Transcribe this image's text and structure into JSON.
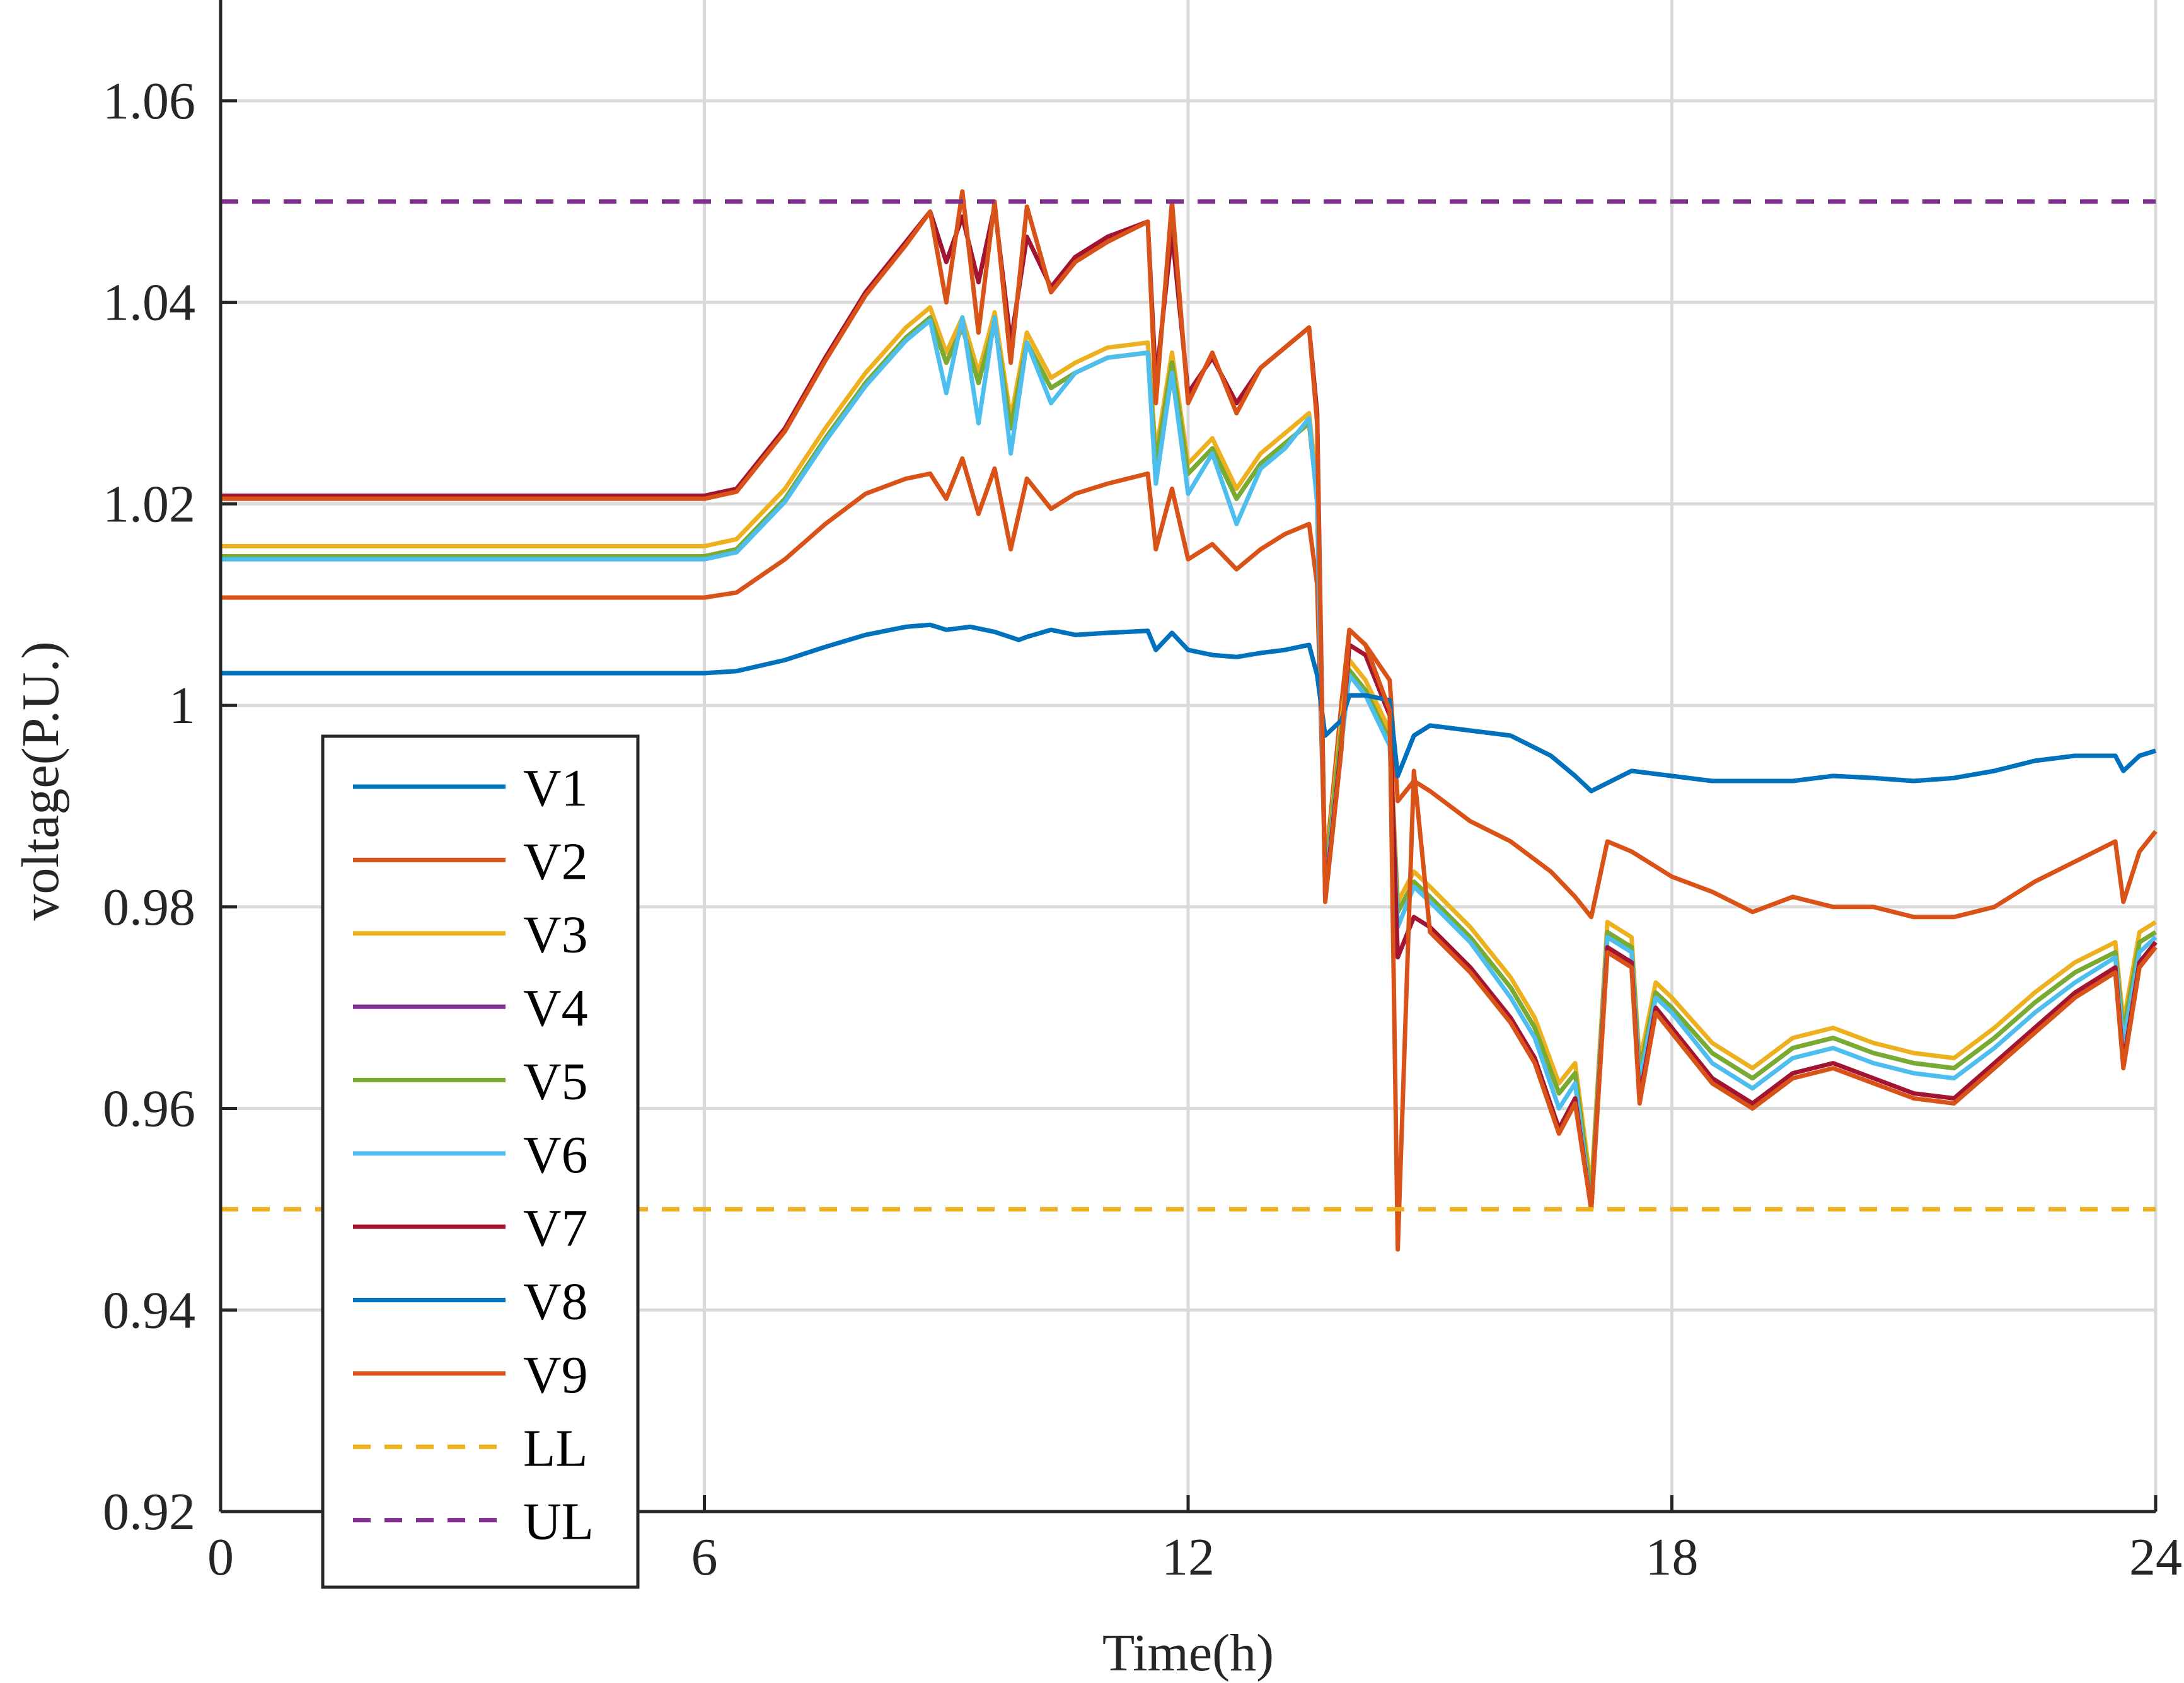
{
  "chart_data": {
    "type": "line",
    "title": "",
    "xlabel": "Time(h)",
    "ylabel": "voltage(P.U.)",
    "xlim": [
      0,
      24
    ],
    "ylim": [
      0.92,
      1.07
    ],
    "xticks": [
      0,
      6,
      12,
      18,
      24
    ],
    "xtick_labels": [
      "0",
      "6",
      "12",
      "18",
      "24"
    ],
    "yticks": [
      0.92,
      0.94,
      0.96,
      0.98,
      1.0,
      1.02,
      1.04,
      1.06
    ],
    "ytick_labels": [
      "0.92",
      "0.94",
      "0.96",
      "0.98",
      "1",
      "1.02",
      "1.04",
      "1.06"
    ],
    "grid": true,
    "legend_position": "bottom-left",
    "series": [
      {
        "name": "V1",
        "color": "#0072BD",
        "dash": "solid",
        "x": [
          0,
          6,
          6.4,
          7,
          7.5,
          8,
          8.5,
          8.8,
          9,
          9.3,
          9.6,
          9.9,
          10,
          10.3,
          10.6,
          11,
          11.5,
          11.6,
          11.8,
          12,
          12.3,
          12.6,
          12.9,
          13.2,
          13.5,
          13.6,
          13.7,
          13.9,
          14,
          14.2,
          14.5,
          14.6,
          14.8,
          15,
          15.5,
          16,
          16.5,
          16.8,
          17,
          17.5,
          18,
          18.5,
          19,
          19.5,
          20,
          20.5,
          21,
          21.5,
          22,
          22.5,
          23,
          23.5,
          23.6,
          23.8,
          24
        ],
        "y": [
          1.0032,
          1.0032,
          1.0034,
          1.0045,
          1.0058,
          1.007,
          1.0078,
          1.008,
          1.0075,
          1.0078,
          1.0073,
          1.0065,
          1.0068,
          1.0075,
          1.007,
          1.0072,
          1.0074,
          1.0055,
          1.0072,
          1.0055,
          1.005,
          1.0048,
          1.0052,
          1.0055,
          1.006,
          1.003,
          0.997,
          0.9985,
          1.001,
          1.001,
          1.0005,
          0.993,
          0.997,
          0.998,
          0.9975,
          0.997,
          0.995,
          0.993,
          0.9915,
          0.9935,
          0.993,
          0.9925,
          0.9925,
          0.9925,
          0.993,
          0.9928,
          0.9925,
          0.9928,
          0.9935,
          0.9945,
          0.995,
          0.995,
          0.9935,
          0.995,
          0.9955
        ]
      },
      {
        "name": "V2",
        "color": "#D95319",
        "dash": "solid",
        "x": [
          0,
          6,
          6.4,
          7,
          7.5,
          8,
          8.5,
          8.8,
          9,
          9.2,
          9.4,
          9.6,
          9.8,
          10,
          10.3,
          10.6,
          11,
          11.5,
          11.6,
          11.8,
          12,
          12.3,
          12.6,
          12.9,
          13.2,
          13.5,
          13.6,
          13.7,
          13.9,
          14,
          14.2,
          14.5,
          14.6,
          14.8,
          15,
          15.5,
          16,
          16.5,
          16.8,
          17,
          17.2,
          17.5,
          18,
          18.5,
          19,
          19.5,
          20,
          20.5,
          21,
          21.5,
          22,
          22.5,
          23,
          23.5,
          23.6,
          23.8,
          24
        ],
        "y": [
          1.0107,
          1.0107,
          1.0112,
          1.0145,
          1.018,
          1.021,
          1.0225,
          1.023,
          1.0205,
          1.0245,
          1.019,
          1.0235,
          1.0155,
          1.0225,
          1.0195,
          1.021,
          1.022,
          1.023,
          1.0155,
          1.0215,
          1.0145,
          1.016,
          1.0135,
          1.0155,
          1.017,
          1.018,
          1.012,
          0.9835,
          1.0,
          1.0075,
          1.006,
          1.0025,
          0.9905,
          0.9925,
          0.9915,
          0.9885,
          0.9865,
          0.9835,
          0.981,
          0.979,
          0.9865,
          0.9855,
          0.983,
          0.9815,
          0.9795,
          0.981,
          0.98,
          0.98,
          0.979,
          0.979,
          0.98,
          0.9825,
          0.9845,
          0.9865,
          0.9805,
          0.9855,
          0.9875
        ]
      },
      {
        "name": "V3",
        "color": "#EDB120",
        "dash": "solid",
        "x": [
          0,
          6,
          6.4,
          7,
          7.5,
          8,
          8.5,
          8.8,
          9,
          9.2,
          9.4,
          9.6,
          9.8,
          10,
          10.3,
          10.6,
          11,
          11.5,
          11.6,
          11.8,
          12,
          12.3,
          12.6,
          12.9,
          13.2,
          13.5,
          13.6,
          13.7,
          13.9,
          14,
          14.2,
          14.5,
          14.6,
          14.8,
          15,
          15.5,
          16,
          16.3,
          16.6,
          16.8,
          17,
          17.2,
          17.5,
          17.6,
          17.8,
          18,
          18.5,
          19,
          19.5,
          20,
          20.5,
          21,
          21.5,
          22,
          22.5,
          23,
          23.5,
          23.6,
          23.8,
          24
        ],
        "y": [
          1.0158,
          1.0158,
          1.0165,
          1.0215,
          1.0275,
          1.033,
          1.0375,
          1.0395,
          1.035,
          1.0385,
          1.033,
          1.039,
          1.0285,
          1.037,
          1.0325,
          1.034,
          1.0355,
          1.036,
          1.025,
          1.035,
          1.024,
          1.0265,
          1.0215,
          1.025,
          1.027,
          1.029,
          1.0215,
          0.983,
          0.9985,
          1.0045,
          1.0025,
          0.9975,
          0.9805,
          0.9835,
          0.982,
          0.978,
          0.973,
          0.969,
          0.9625,
          0.9645,
          0.952,
          0.9785,
          0.977,
          0.9645,
          0.9725,
          0.971,
          0.9665,
          0.964,
          0.967,
          0.968,
          0.9665,
          0.9655,
          0.965,
          0.968,
          0.9715,
          0.9745,
          0.9765,
          0.9685,
          0.9775,
          0.9785
        ]
      },
      {
        "name": "V4",
        "color": "#7E2F8E",
        "dash": "solid",
        "x": [
          0,
          6,
          6.4,
          7,
          7.5,
          8,
          8.5,
          8.8,
          9,
          9.2,
          9.4,
          9.6,
          9.8,
          10,
          10.3,
          10.6,
          11,
          11.5,
          11.6,
          11.8,
          12,
          12.3,
          12.6,
          12.9,
          13.2,
          13.5,
          13.6,
          13.7,
          13.9,
          14,
          14.2,
          14.5,
          14.6,
          14.8,
          15,
          15.5,
          16,
          16.3,
          16.6,
          16.8,
          17,
          17.2,
          17.5,
          17.6,
          17.8,
          18,
          18.5,
          19,
          19.5,
          20,
          20.5,
          21,
          21.5,
          22,
          22.5,
          23,
          23.5,
          23.6,
          23.8,
          24
        ],
        "y": [
          1.0148,
          1.0148,
          1.0155,
          1.0205,
          1.0265,
          1.032,
          1.0365,
          1.0385,
          1.034,
          1.0375,
          1.032,
          1.038,
          1.0275,
          1.036,
          1.0315,
          1.033,
          1.0345,
          1.035,
          1.024,
          1.034,
          1.023,
          1.0255,
          1.0205,
          1.024,
          1.026,
          1.028,
          1.0205,
          0.9825,
          0.9975,
          1.0035,
          1.0015,
          0.9965,
          0.9795,
          0.9825,
          0.981,
          0.977,
          0.972,
          0.968,
          0.9615,
          0.9635,
          0.951,
          0.9775,
          0.976,
          0.9635,
          0.9715,
          0.97,
          0.9655,
          0.963,
          0.966,
          0.967,
          0.9655,
          0.9645,
          0.964,
          0.967,
          0.9705,
          0.9735,
          0.9755,
          0.9675,
          0.9765,
          0.9775
        ]
      },
      {
        "name": "V5",
        "color": "#77AC30",
        "dash": "solid",
        "x": [
          0,
          6,
          6.4,
          7,
          7.5,
          8,
          8.5,
          8.8,
          9,
          9.2,
          9.4,
          9.6,
          9.8,
          10,
          10.3,
          10.6,
          11,
          11.5,
          11.6,
          11.8,
          12,
          12.3,
          12.6,
          12.9,
          13.2,
          13.5,
          13.6,
          13.7,
          13.9,
          14,
          14.2,
          14.5,
          14.6,
          14.8,
          15,
          15.5,
          16,
          16.3,
          16.6,
          16.8,
          17,
          17.2,
          17.5,
          17.6,
          17.8,
          18,
          18.5,
          19,
          19.5,
          20,
          20.5,
          21,
          21.5,
          22,
          22.5,
          23,
          23.5,
          23.6,
          23.8,
          24
        ],
        "y": [
          1.0148,
          1.0148,
          1.0155,
          1.0205,
          1.0265,
          1.032,
          1.0365,
          1.0385,
          1.034,
          1.0375,
          1.032,
          1.038,
          1.0275,
          1.036,
          1.0315,
          1.033,
          1.0345,
          1.035,
          1.024,
          1.034,
          1.023,
          1.0255,
          1.0205,
          1.024,
          1.026,
          1.028,
          1.0205,
          0.9825,
          0.9975,
          1.0035,
          1.0015,
          0.9965,
          0.9795,
          0.9825,
          0.981,
          0.977,
          0.972,
          0.968,
          0.9615,
          0.9635,
          0.951,
          0.9775,
          0.976,
          0.9635,
          0.9715,
          0.97,
          0.9655,
          0.963,
          0.966,
          0.967,
          0.9655,
          0.9645,
          0.964,
          0.967,
          0.9705,
          0.9735,
          0.9755,
          0.9675,
          0.9765,
          0.9775
        ]
      },
      {
        "name": "V6",
        "color": "#4DBEEE",
        "dash": "solid",
        "x": [
          0,
          6,
          6.4,
          7,
          7.5,
          8,
          8.5,
          8.8,
          9,
          9.2,
          9.4,
          9.6,
          9.8,
          10,
          10.3,
          10.6,
          11,
          11.5,
          11.6,
          11.8,
          12,
          12.3,
          12.6,
          12.9,
          13.2,
          13.5,
          13.6,
          13.7,
          13.9,
          14,
          14.2,
          14.5,
          14.6,
          14.8,
          15,
          15.5,
          16,
          16.3,
          16.6,
          16.8,
          17,
          17.2,
          17.5,
          17.6,
          17.8,
          18,
          18.5,
          19,
          19.5,
          20,
          20.5,
          21,
          21.5,
          22,
          22.5,
          23,
          23.5,
          23.6,
          23.8,
          24
        ],
        "y": [
          1.0145,
          1.0145,
          1.0152,
          1.0202,
          1.0262,
          1.0317,
          1.0362,
          1.0382,
          1.031,
          1.0385,
          1.028,
          1.0385,
          1.025,
          1.036,
          1.03,
          1.033,
          1.0345,
          1.035,
          1.022,
          1.033,
          1.021,
          1.025,
          1.018,
          1.0235,
          1.0255,
          1.0285,
          1.02,
          0.982,
          0.996,
          1.003,
          1.001,
          0.996,
          0.978,
          0.982,
          0.9805,
          0.9765,
          0.971,
          0.967,
          0.96,
          0.9625,
          0.95,
          0.977,
          0.9755,
          0.9625,
          0.971,
          0.9695,
          0.9645,
          0.962,
          0.965,
          0.966,
          0.9645,
          0.9635,
          0.963,
          0.966,
          0.9695,
          0.9725,
          0.975,
          0.9665,
          0.9755,
          0.977
        ]
      },
      {
        "name": "V7",
        "color": "#A2142F",
        "dash": "solid",
        "x": [
          0,
          6,
          6.4,
          7,
          7.5,
          8,
          8.5,
          8.8,
          9,
          9.2,
          9.4,
          9.6,
          9.8,
          10,
          10.3,
          10.6,
          11,
          11.5,
          11.6,
          11.8,
          12,
          12.3,
          12.6,
          12.9,
          13.2,
          13.5,
          13.6,
          13.7,
          13.9,
          14,
          14.2,
          14.5,
          14.6,
          14.8,
          15,
          15.5,
          16,
          16.3,
          16.6,
          16.8,
          17,
          17.2,
          17.5,
          17.6,
          17.8,
          18,
          18.5,
          19,
          19.5,
          20,
          20.5,
          21,
          21.5,
          22,
          22.5,
          23,
          23.5,
          23.6,
          23.8,
          24
        ],
        "y": [
          1.0208,
          1.0208,
          1.0215,
          1.0275,
          1.0345,
          1.041,
          1.046,
          1.049,
          1.044,
          1.0485,
          1.042,
          1.0495,
          1.036,
          1.0465,
          1.0415,
          1.0445,
          1.0465,
          1.048,
          1.032,
          1.047,
          1.031,
          1.0345,
          1.03,
          1.0335,
          1.0355,
          1.0375,
          1.029,
          0.981,
          0.996,
          1.006,
          1.005,
          0.999,
          0.975,
          0.979,
          0.978,
          0.974,
          0.969,
          0.965,
          0.958,
          0.961,
          0.95,
          0.976,
          0.9745,
          0.961,
          0.97,
          0.968,
          0.963,
          0.9605,
          0.9635,
          0.9645,
          0.963,
          0.9615,
          0.961,
          0.9645,
          0.968,
          0.9715,
          0.974,
          0.9645,
          0.9745,
          0.9765
        ]
      },
      {
        "name": "V8",
        "color": "#0072BD",
        "dash": "solid",
        "x": [
          0,
          6,
          6.4,
          7,
          7.5,
          8,
          8.5,
          8.8,
          9,
          9.3,
          9.6,
          9.9,
          10,
          10.3,
          10.6,
          11,
          11.5,
          11.6,
          11.8,
          12,
          12.3,
          12.6,
          12.9,
          13.2,
          13.5,
          13.6,
          13.7,
          13.9,
          14,
          14.2,
          14.5,
          14.6,
          14.8,
          15,
          15.5,
          16,
          16.5,
          16.8,
          17,
          17.5,
          18,
          18.5,
          19,
          19.5,
          20,
          20.5,
          21,
          21.5,
          22,
          22.5,
          23,
          23.5,
          23.6,
          23.8,
          24
        ],
        "y": [
          1.0032,
          1.0032,
          1.0034,
          1.0045,
          1.0058,
          1.007,
          1.0078,
          1.008,
          1.0075,
          1.0078,
          1.0073,
          1.0065,
          1.0068,
          1.0075,
          1.007,
          1.0072,
          1.0074,
          1.0055,
          1.0072,
          1.0055,
          1.005,
          1.0048,
          1.0052,
          1.0055,
          1.006,
          1.003,
          0.997,
          0.9985,
          1.001,
          1.001,
          1.0005,
          0.993,
          0.997,
          0.998,
          0.9975,
          0.997,
          0.995,
          0.993,
          0.9915,
          0.9935,
          0.993,
          0.9925,
          0.9925,
          0.9925,
          0.993,
          0.9928,
          0.9925,
          0.9928,
          0.9935,
          0.9945,
          0.995,
          0.995,
          0.9935,
          0.995,
          0.9955
        ]
      },
      {
        "name": "V9",
        "color": "#D95319",
        "dash": "solid",
        "x": [
          0,
          6,
          6.4,
          7,
          7.5,
          8,
          8.5,
          8.8,
          9,
          9.2,
          9.4,
          9.6,
          9.8,
          10,
          10.3,
          10.6,
          11,
          11.5,
          11.6,
          11.8,
          12,
          12.3,
          12.6,
          12.9,
          13.2,
          13.5,
          13.6,
          13.7,
          13.9,
          14,
          14.2,
          14.5,
          14.6,
          14.8,
          15,
          15.5,
          16,
          16.3,
          16.6,
          16.8,
          17,
          17.2,
          17.5,
          17.6,
          17.8,
          18,
          18.5,
          19,
          19.5,
          20,
          20.5,
          21,
          21.5,
          22,
          22.5,
          23,
          23.5,
          23.6,
          23.8,
          24
        ],
        "y": [
          1.0205,
          1.0205,
          1.0212,
          1.0272,
          1.0342,
          1.0407,
          1.0457,
          1.049,
          1.04,
          1.051,
          1.037,
          1.05,
          1.034,
          1.0495,
          1.041,
          1.044,
          1.046,
          1.048,
          1.03,
          1.05,
          1.03,
          1.035,
          1.029,
          1.0335,
          1.0355,
          1.0375,
          1.028,
          0.9805,
          0.9955,
          1.0075,
          1.006,
          0.9995,
          0.946,
          0.9935,
          0.9775,
          0.9735,
          0.9685,
          0.9645,
          0.9575,
          0.9605,
          0.95,
          0.9755,
          0.974,
          0.9605,
          0.9695,
          0.9675,
          0.9625,
          0.96,
          0.963,
          0.964,
          0.9625,
          0.961,
          0.9605,
          0.964,
          0.9675,
          0.971,
          0.9735,
          0.964,
          0.974,
          0.976
        ]
      },
      {
        "name": "LL",
        "color": "#EDB120",
        "dash": "dashed",
        "x": [
          0,
          24
        ],
        "y": [
          0.95,
          0.95
        ]
      },
      {
        "name": "UL",
        "color": "#7E2F8E",
        "dash": "dashed",
        "x": [
          0,
          24
        ],
        "y": [
          1.05,
          1.05
        ]
      }
    ]
  }
}
